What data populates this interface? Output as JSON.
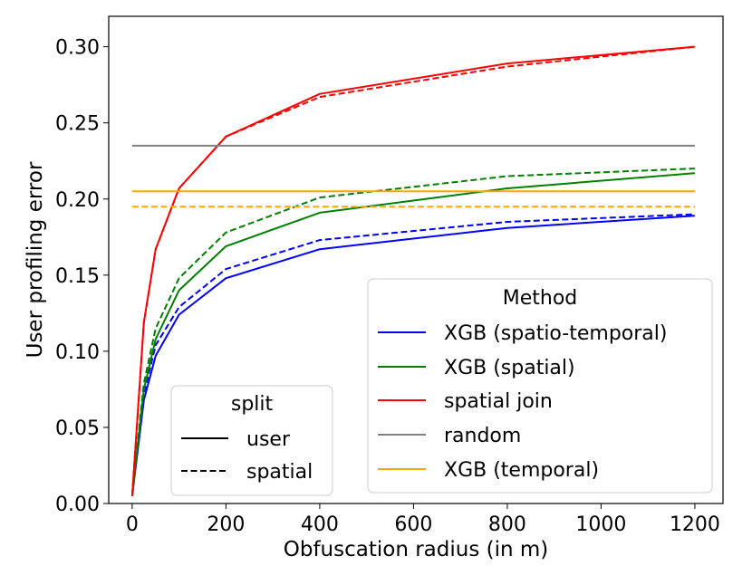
{
  "chart_data": {
    "type": "line",
    "title": "",
    "xlabel": "Obfuscation radius (in m)",
    "ylabel": "User profiling error",
    "xlim": [
      -50,
      1260
    ],
    "ylim": [
      0,
      0.32
    ],
    "xticks": [
      0,
      200,
      400,
      600,
      800,
      1000,
      1200
    ],
    "xtick_labels": [
      "0",
      "200",
      "400",
      "600",
      "800",
      "1000",
      "1200"
    ],
    "yticks": [
      0,
      0.05,
      0.1,
      0.15,
      0.2,
      0.25,
      0.3
    ],
    "ytick_labels": [
      "0.00",
      "0.05",
      "0.10",
      "0.15",
      "0.20",
      "0.25",
      "0.30"
    ],
    "grid": false,
    "method_legend": {
      "title": "Method",
      "placement": "lower right",
      "entries": [
        {
          "label": "XGB (spatio-temporal)",
          "color": "#0000ff"
        },
        {
          "label": "XGB (spatial)",
          "color": "#008000"
        },
        {
          "label": "spatial join",
          "color": "#ff0000"
        },
        {
          "label": "random",
          "color": "#808080"
        },
        {
          "label": "XGB (temporal)",
          "color": "#ffa500"
        }
      ]
    },
    "split_legend": {
      "title": "split",
      "placement": "lower left",
      "entries": [
        {
          "label": "user",
          "style": "solid"
        },
        {
          "label": "spatial",
          "style": "dashed"
        }
      ]
    },
    "series": [
      {
        "method": "XGB (spatio-temporal)",
        "split": "user",
        "color": "#0000ff",
        "style": "solid",
        "x": [
          0,
          25,
          50,
          100,
          200,
          400,
          800,
          1200
        ],
        "y": [
          0.005,
          0.068,
          0.097,
          0.124,
          0.148,
          0.167,
          0.181,
          0.189
        ]
      },
      {
        "method": "XGB (spatio-temporal)",
        "split": "spatial",
        "color": "#0000ff",
        "style": "dashed",
        "x": [
          0,
          25,
          50,
          100,
          200,
          400,
          800,
          1200
        ],
        "y": [
          0.005,
          0.072,
          0.104,
          0.129,
          0.154,
          0.173,
          0.185,
          0.19
        ]
      },
      {
        "method": "XGB (spatial)",
        "split": "user",
        "color": "#008000",
        "style": "solid",
        "x": [
          0,
          25,
          50,
          100,
          200,
          400,
          800,
          1200
        ],
        "y": [
          0.005,
          0.075,
          0.108,
          0.14,
          0.169,
          0.191,
          0.207,
          0.217
        ]
      },
      {
        "method": "XGB (spatial)",
        "split": "spatial",
        "color": "#008000",
        "style": "dashed",
        "x": [
          0,
          25,
          50,
          100,
          200,
          400,
          800,
          1200
        ],
        "y": [
          0.005,
          0.079,
          0.115,
          0.148,
          0.178,
          0.201,
          0.215,
          0.22
        ]
      },
      {
        "method": "spatial join",
        "split": "user",
        "color": "#ff0000",
        "style": "solid",
        "x": [
          0,
          25,
          50,
          100,
          200,
          400,
          800,
          1200
        ],
        "y": [
          0.005,
          0.119,
          0.167,
          0.207,
          0.241,
          0.269,
          0.289,
          0.3
        ]
      },
      {
        "method": "spatial join",
        "split": "spatial",
        "color": "#ff0000",
        "style": "dashed",
        "x": [
          0,
          25,
          50,
          100,
          200,
          400,
          800,
          1200
        ],
        "y": [
          0.005,
          0.119,
          0.167,
          0.207,
          0.241,
          0.267,
          0.287,
          0.3
        ]
      },
      {
        "method": "random",
        "split": "user",
        "color": "#808080",
        "style": "solid",
        "x": [
          0,
          1200
        ],
        "y": [
          0.235,
          0.235
        ]
      },
      {
        "method": "XGB (temporal)",
        "split": "user",
        "color": "#ffa500",
        "style": "solid",
        "x": [
          0,
          1200
        ],
        "y": [
          0.205,
          0.205
        ]
      },
      {
        "method": "XGB (temporal)",
        "split": "spatial",
        "color": "#ffa500",
        "style": "dashed",
        "x": [
          0,
          1200
        ],
        "y": [
          0.195,
          0.195
        ]
      }
    ]
  }
}
